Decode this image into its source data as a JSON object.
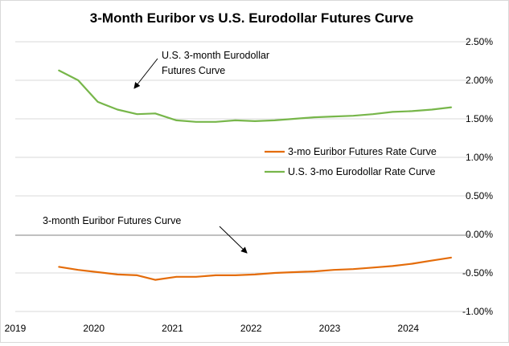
{
  "chart_data": {
    "type": "line",
    "title": "3-Month Euribor vs U.S. Eurodollar Futures Curve",
    "xlabel": "",
    "ylabel": "",
    "xlim": [
      2019,
      2024.78
    ],
    "ylim": [
      -1.0,
      2.5
    ],
    "x_ticks": [
      "2019",
      "2020",
      "2021",
      "2022",
      "2023",
      "2024"
    ],
    "y_ticks": [
      "2.50%",
      "2.00%",
      "1.50%",
      "1.00%",
      "0.50%",
      "0.00%",
      "-0.50%",
      "-1.00%"
    ],
    "grid": "horizontal",
    "legend_position": "right-center",
    "series": [
      {
        "name": "3-mo Euribor Futures Rate Curve",
        "color": "#e46c0a",
        "x": [
          2019.55,
          2019.8,
          2020.05,
          2020.3,
          2020.55,
          2020.78,
          2021.05,
          2021.3,
          2021.55,
          2021.8,
          2022.05,
          2022.3,
          2022.55,
          2022.8,
          2023.05,
          2023.3,
          2023.55,
          2023.8,
          2024.05,
          2024.3,
          2024.55
        ],
        "values": [
          -0.42,
          -0.46,
          -0.49,
          -0.52,
          -0.53,
          -0.59,
          -0.55,
          -0.55,
          -0.53,
          -0.53,
          -0.52,
          -0.5,
          -0.49,
          -0.48,
          -0.46,
          -0.45,
          -0.43,
          -0.41,
          -0.38,
          -0.34,
          -0.3
        ]
      },
      {
        "name": "U.S. 3-mo Eurodollar Rate Curve",
        "color": "#77b64a",
        "x": [
          2019.55,
          2019.8,
          2020.05,
          2020.3,
          2020.55,
          2020.78,
          2021.05,
          2021.3,
          2021.55,
          2021.8,
          2022.05,
          2022.3,
          2022.55,
          2022.8,
          2023.05,
          2023.3,
          2023.55,
          2023.8,
          2024.05,
          2024.3,
          2024.55
        ],
        "values": [
          2.13,
          2.0,
          1.72,
          1.62,
          1.56,
          1.57,
          1.48,
          1.46,
          1.46,
          1.48,
          1.47,
          1.48,
          1.5,
          1.52,
          1.53,
          1.54,
          1.56,
          1.59,
          1.6,
          1.62,
          1.65
        ]
      }
    ],
    "annotations": [
      {
        "id": "us",
        "lines": [
          "U.S. 3-month Eurodollar",
          "Futures Curve"
        ]
      },
      {
        "id": "eu",
        "lines": [
          "3-month Euribor Futures Curve"
        ]
      }
    ]
  }
}
